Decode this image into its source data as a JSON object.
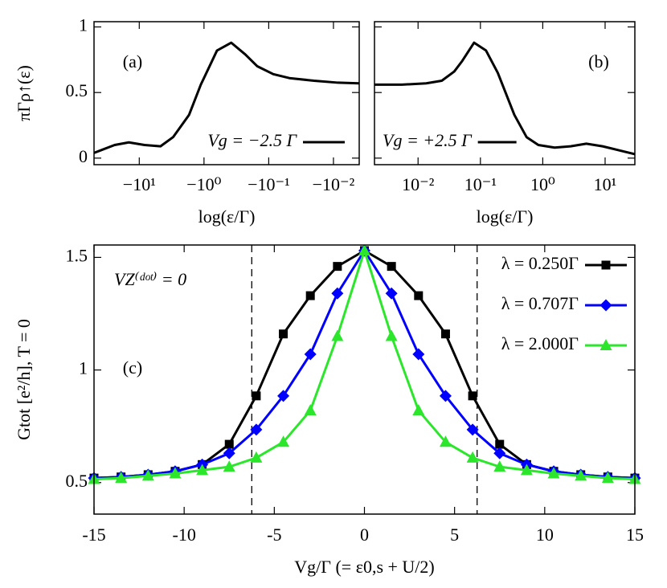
{
  "chart_data": [
    {
      "type": "line",
      "label": "(a)",
      "xlabel": "log(ε/Γ)",
      "ylabel": "πΓρ↑(ε)",
      "xscale": "log",
      "x": [
        -50,
        -24,
        -14.5,
        -8.3,
        -4.7,
        -3,
        -1.7,
        -1.12,
        -0.63,
        -0.38,
        -0.23,
        -0.15,
        -0.085,
        -0.048,
        -0.02,
        -0.0085,
        -0.004
      ],
      "series": [
        {
          "name": "Vg = −2.5 Γ",
          "color": "#000000",
          "values": [
            0.04,
            0.1,
            0.12,
            0.1,
            0.09,
            0.16,
            0.33,
            0.56,
            0.82,
            0.88,
            0.79,
            0.7,
            0.64,
            0.61,
            0.59,
            0.575,
            0.57
          ]
        }
      ],
      "xlim": [
        -50,
        -0.004
      ],
      "ylim": [
        -0.05,
        1.04
      ],
      "xticks": [
        {
          "value": -10,
          "label": "−10¹"
        },
        {
          "value": -1,
          "label": "−10⁰"
        },
        {
          "value": -0.1,
          "label": "−10⁻¹"
        },
        {
          "value": -0.01,
          "label": "−10⁻²"
        }
      ],
      "yticks": [
        0,
        0.5,
        1
      ],
      "legend": "lower right"
    },
    {
      "type": "line",
      "label": "(b)",
      "xlabel": "log(ε/Γ)",
      "xscale": "log",
      "x": [
        0.002,
        0.0055,
        0.0135,
        0.024,
        0.038,
        0.051,
        0.079,
        0.123,
        0.19,
        0.35,
        0.55,
        0.85,
        1.55,
        2.8,
        5.0,
        9.1,
        16.6,
        30
      ],
      "series": [
        {
          "name": "Vg = +2.5 Γ",
          "color": "#000000",
          "values": [
            0.56,
            0.56,
            0.57,
            0.59,
            0.66,
            0.74,
            0.88,
            0.82,
            0.65,
            0.33,
            0.16,
            0.1,
            0.08,
            0.09,
            0.11,
            0.09,
            0.06,
            0.03
          ]
        }
      ],
      "xlim": [
        0.002,
        30
      ],
      "ylim": [
        -0.05,
        1.04
      ],
      "xticks": [
        {
          "value": 0.01,
          "label": "10⁻²"
        },
        {
          "value": 0.1,
          "label": "10⁻¹"
        },
        {
          "value": 1,
          "label": "10⁰"
        },
        {
          "value": 10,
          "label": "10¹"
        }
      ],
      "yticks": [
        0,
        0.5,
        1
      ],
      "ytick_labels": false,
      "legend": "lower left"
    },
    {
      "type": "line",
      "label": "(c)",
      "annotation": "VZ⁽ᵈᵒᵗ⁾ = 0",
      "xlabel": "Vg/Γ    (= ε0,s + U/2)",
      "ylabel": "Gtot [e²/h], T = 0",
      "x": [
        -15,
        -13.5,
        -12,
        -10.5,
        -9,
        -7.5,
        -6,
        -4.5,
        -3,
        -1.5,
        0,
        1.5,
        3,
        4.5,
        6,
        7.5,
        9,
        10.5,
        12,
        13.5,
        15
      ],
      "series": [
        {
          "name": "λ = 0.250Γ",
          "color": "#000000",
          "marker": "square",
          "values": [
            0.52,
            0.525,
            0.535,
            0.55,
            0.58,
            0.67,
            0.885,
            1.16,
            1.33,
            1.46,
            1.53,
            1.46,
            1.33,
            1.16,
            0.885,
            0.67,
            0.58,
            0.55,
            0.535,
            0.525,
            0.52
          ]
        },
        {
          "name": "λ = 0.707Γ",
          "color": "#0000ff",
          "marker": "diamond",
          "values": [
            0.52,
            0.525,
            0.535,
            0.55,
            0.58,
            0.63,
            0.735,
            0.885,
            1.07,
            1.34,
            1.53,
            1.34,
            1.07,
            0.885,
            0.735,
            0.63,
            0.58,
            0.55,
            0.535,
            0.525,
            0.52
          ]
        },
        {
          "name": "λ = 2.000Γ",
          "color": "#2ce62c",
          "marker": "triangle",
          "values": [
            0.515,
            0.52,
            0.53,
            0.54,
            0.555,
            0.57,
            0.61,
            0.68,
            0.82,
            1.15,
            1.53,
            1.15,
            0.82,
            0.68,
            0.61,
            0.57,
            0.555,
            0.54,
            0.53,
            0.52,
            0.515
          ]
        }
      ],
      "xlim": [
        -15,
        15
      ],
      "ylim": [
        0.36,
        1.555
      ],
      "xticks": [
        -15,
        -10,
        -5,
        0,
        5,
        10,
        15
      ],
      "yticks": [
        0.5,
        1,
        1.5
      ],
      "vlines": [
        -6.25,
        6.25
      ],
      "legend": "upper right"
    }
  ]
}
